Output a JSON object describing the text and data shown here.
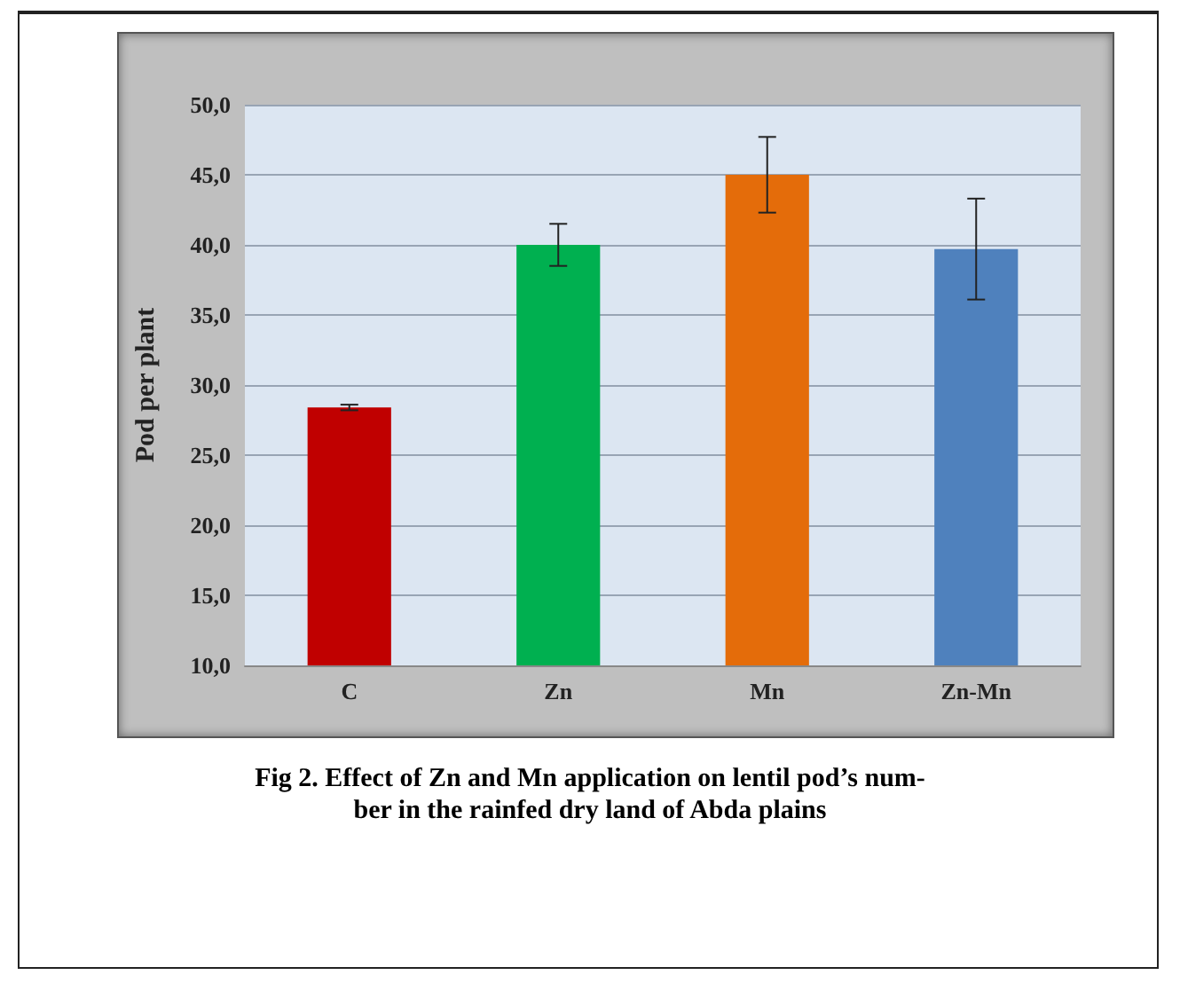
{
  "chart_data": {
    "type": "bar",
    "ylabel": "Pod per plant",
    "categories": [
      "C",
      "Zn",
      "Mn",
      "Zn-Mn"
    ],
    "values": [
      28.4,
      40.0,
      45.0,
      39.7
    ],
    "colors": [
      "#c00000",
      "#00b050",
      "#e46c0a",
      "#4f81bd"
    ],
    "errors": [
      0.2,
      1.5,
      2.7,
      3.6
    ],
    "ylim": [
      10,
      50
    ],
    "yticks": [
      {
        "value": 10,
        "label": "10,0"
      },
      {
        "value": 15,
        "label": "15,0"
      },
      {
        "value": 20,
        "label": "20,0"
      },
      {
        "value": 25,
        "label": "25,0"
      },
      {
        "value": 30,
        "label": "30,0"
      },
      {
        "value": 35,
        "label": "35,0"
      },
      {
        "value": 40,
        "label": "40,0"
      },
      {
        "value": 45,
        "label": "45,0"
      },
      {
        "value": 50,
        "label": "50,0"
      }
    ],
    "grid": "y",
    "annotations": [
      "Fig 2. Effect of Zn and Mn application on lentil pod’s num-\nber in the rainfed dry land of Abda plains"
    ]
  }
}
